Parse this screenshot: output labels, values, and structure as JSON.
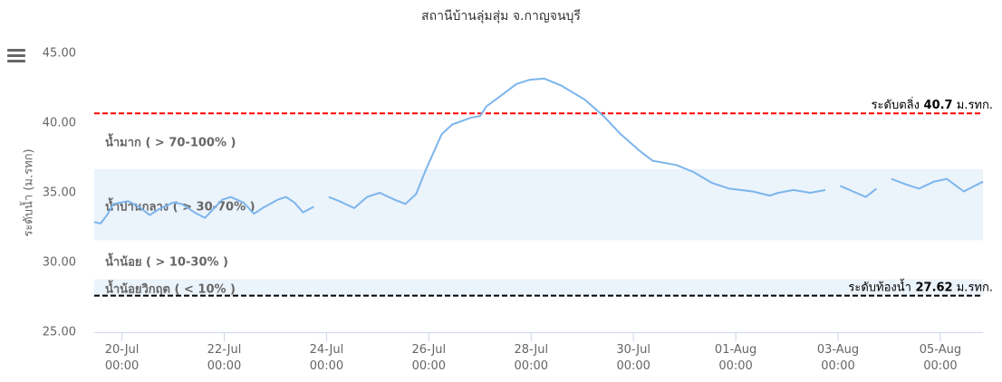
{
  "chart_data": {
    "type": "line",
    "title": "สถานีบ้านลุ่มสุ่ม จ.กาญจนบุรี",
    "y_label": "ระดับน้ำ (ม.รทก)",
    "x": [
      "19-Jul 11:00",
      "19-Jul 14:00",
      "19-Jul 17:00",
      "19-Jul 20:00",
      "20-Jul 03:00",
      "20-Jul 08:00",
      "20-Jul 13:00",
      "20-Jul 17:00",
      "21-Jul 00:00",
      "21-Jul 04:00",
      "21-Jul 10:00",
      "21-Jul 15:00",
      "21-Jul 23:00",
      "22-Jul 03:00",
      "22-Jul 09:00",
      "22-Jul 14:00",
      "22-Jul 18:00",
      "23-Jul 01:00",
      "23-Jul 05:00",
      "23-Jul 09:00",
      "23-Jul 13:00",
      "23-Jul 18:00",
      "23-Jul 22:00",
      "24-Jul 01:00",
      "24-Jul 06:00",
      "24-Jul 13:00",
      "24-Jul 19:00",
      "25-Jul 01:00",
      "25-Jul 08:00",
      "25-Jul 13:00",
      "25-Jul 18:00",
      "25-Jul 23:00",
      "26-Jul 06:00",
      "26-Jul 11:00",
      "26-Jul 20:00",
      "27-Jul 00:00",
      "27-Jul 03:00",
      "27-Jul 11:00",
      "27-Jul 17:00",
      "27-Jul 23:00",
      "28-Jul 06:00",
      "28-Jul 14:00",
      "29-Jul 01:00",
      "29-Jul 10:00",
      "29-Jul 18:00",
      "30-Jul 03:00",
      "30-Jul 09:00",
      "30-Jul 20:00",
      "31-Jul 04:00",
      "31-Jul 13:00",
      "31-Jul 21:00",
      "01-Aug 08:00",
      "01-Aug 16:00",
      "01-Aug 20:00",
      "02-Aug 03:00",
      "02-Aug 11:00",
      "02-Aug 18:00",
      "02-Aug 21:00",
      "03-Aug 01:00",
      "03-Aug 07:00",
      "03-Aug 13:00",
      "03-Aug 18:00",
      "03-Aug 22:00",
      "04-Aug 01:00",
      "04-Aug 08:00",
      "04-Aug 14:00",
      "04-Aug 21:00",
      "05-Aug 03:00",
      "05-Aug 11:00",
      "05-Aug 20:00"
    ],
    "series": [
      {
        "name": "ระดับน้ำ",
        "color": "#7cb5ec",
        "values": [
          32.9,
          32.8,
          33.4,
          34.2,
          34.4,
          34.0,
          33.4,
          33.8,
          34.3,
          34.2,
          33.6,
          33.2,
          34.5,
          34.7,
          34.3,
          33.5,
          33.9,
          34.5,
          34.7,
          34.3,
          33.6,
          34.0,
          null,
          34.7,
          34.4,
          33.9,
          34.7,
          35.0,
          34.5,
          34.2,
          34.9,
          36.8,
          39.2,
          39.9,
          40.4,
          40.5,
          41.2,
          42.1,
          42.8,
          43.1,
          43.2,
          42.7,
          41.7,
          40.5,
          39.2,
          38.0,
          37.3,
          37.0,
          36.5,
          35.7,
          35.3,
          35.1,
          34.8,
          35.0,
          35.2,
          35.0,
          35.2,
          null,
          35.5,
          35.1,
          34.7,
          35.3,
          null,
          36.0,
          35.6,
          35.3,
          35.8,
          36.0,
          35.1,
          35.8
        ]
      }
    ],
    "xlim": [
      "19-Jul 11:00",
      "05-Aug 20:00"
    ],
    "xticks": [
      "20-Jul 00:00",
      "22-Jul 00:00",
      "24-Jul 00:00",
      "26-Jul 00:00",
      "28-Jul 00:00",
      "30-Jul 00:00",
      "01-Aug 00:00",
      "03-Aug 00:00",
      "05-Aug 00:00"
    ],
    "ylim": [
      25,
      45
    ],
    "yticks": [
      {
        "value": 25,
        "label": "25.00"
      },
      {
        "value": 30,
        "label": "30.00"
      },
      {
        "value": 35,
        "label": "35.00"
      },
      {
        "value": 40,
        "label": "40.00"
      },
      {
        "value": 45,
        "label": "45.00"
      }
    ],
    "plot_bands": [
      {
        "from": 31.6,
        "to": 36.7,
        "color": "#ebf3fb"
      },
      {
        "from": 27.6,
        "to": 28.8,
        "color": "#ebf3fb"
      }
    ],
    "plot_lines": [
      {
        "value": 40.7,
        "color": "#ff0000",
        "label_prefix": "ระดับตลิ่ง",
        "label_suffix": "ม.รทก."
      },
      {
        "value": 27.62,
        "color": "#000000",
        "label_prefix": "ระดับท้องน้ำ",
        "label_suffix": "ม.รทก."
      }
    ],
    "band_labels": [
      {
        "text": "น้ำมาก ( > 70-100% )",
        "color": "#1f5ee0"
      },
      {
        "text": "น้ำปานกลาง ( > 30-70% )",
        "color": "#22b24c"
      },
      {
        "text": "น้ำน้อย ( > 10-30% )",
        "color": "#f5b800"
      },
      {
        "text": "น้ำน้อยวิกฤต ( < 10% )",
        "color": "#e07b20"
      }
    ]
  }
}
